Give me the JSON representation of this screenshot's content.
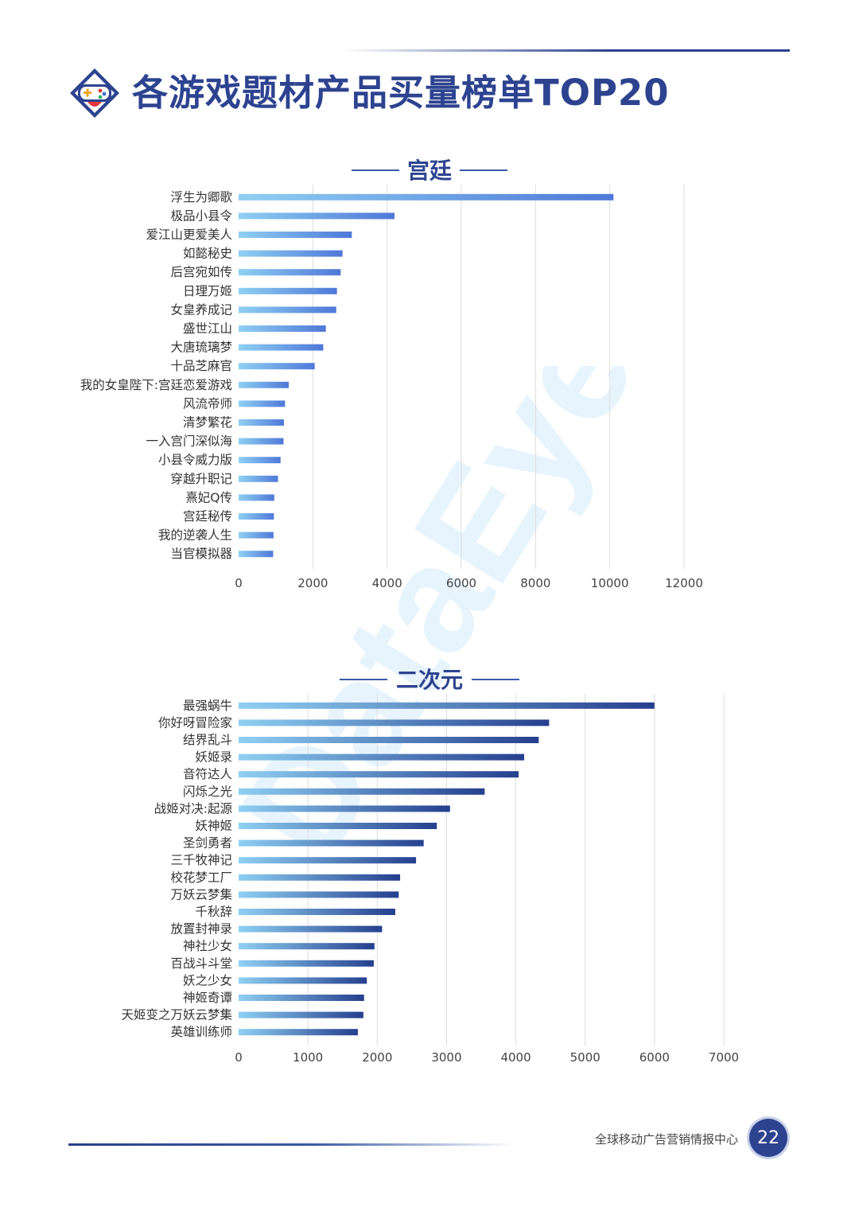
{
  "header": {
    "title": "各游戏题材产品买量榜单TOP20"
  },
  "footer": {
    "org": "全球移动广告营销情报中心",
    "page_number": "22"
  },
  "watermark": {
    "text": "DataEye"
  },
  "colors": {
    "brand": "#2d4390",
    "bar_light": "#8fd0f3",
    "bar_dark": "#2b4aa0",
    "bar_navy": "#253f8e"
  },
  "chart_data": [
    {
      "type": "bar",
      "orientation": "horizontal",
      "title": "宫廷",
      "categories": [
        "浮生为卿歌",
        "极品小县令",
        "爱江山更爱美人",
        "如懿秘史",
        "后宫宛如传",
        "日理万姬",
        "女皇养成记",
        "盛世江山",
        "大唐琉璃梦",
        "十品芝麻官",
        "我的女皇陛下:宫廷恋爱游戏",
        "风流帝师",
        "清梦繁花",
        "一入宫门深似海",
        "小县令威力版",
        "穿越升职记",
        "熹妃Q传",
        "宫廷秘传",
        "我的逆袭人生",
        "当官模拟器"
      ],
      "values": [
        10100,
        4200,
        3050,
        2800,
        2750,
        2650,
        2630,
        2350,
        2280,
        2050,
        1350,
        1250,
        1220,
        1210,
        1130,
        1060,
        960,
        950,
        940,
        930
      ],
      "xlim": [
        0,
        12000
      ],
      "ticks": [
        0,
        2000,
        4000,
        6000,
        8000,
        10000,
        12000
      ],
      "grid": true,
      "legend": "none"
    },
    {
      "type": "bar",
      "orientation": "horizontal",
      "title": "二次元",
      "categories": [
        "最强蜗牛",
        "你好呀冒险家",
        "结界乱斗",
        "妖姬录",
        "音符达人",
        "闪烁之光",
        "战姬对决:起源",
        "妖神姬",
        "圣剑勇者",
        "三千牧神记",
        "校花梦工厂",
        "万妖云梦集",
        "千秋辞",
        "放置封神录",
        "神社少女",
        "百战斗斗堂",
        "妖之少女",
        "神姬奇谭",
        "天姬变之万妖云梦集",
        "英雄训练师"
      ],
      "values": [
        6000,
        4480,
        4330,
        4120,
        4040,
        3550,
        3050,
        2860,
        2670,
        2560,
        2330,
        2310,
        2260,
        2070,
        1960,
        1950,
        1850,
        1810,
        1800,
        1720
      ],
      "xlim": [
        0,
        7000
      ],
      "ticks": [
        0,
        1000,
        2000,
        3000,
        4000,
        5000,
        6000,
        7000
      ],
      "grid": true,
      "legend": "none"
    }
  ]
}
